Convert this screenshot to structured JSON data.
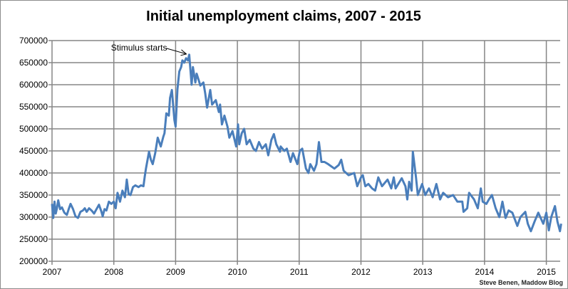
{
  "chart_data": {
    "type": "line",
    "title": "Initial unemployment claims, 2007 - 2015",
    "xlabel": "",
    "ylabel": "",
    "xlim": [
      2007,
      2015.25
    ],
    "ylim": [
      200000,
      700000
    ],
    "x_ticks": [
      "2007",
      "2008",
      "2009",
      "2010",
      "2011",
      "2012",
      "2013",
      "2014",
      "2015"
    ],
    "y_ticks": [
      "200000",
      "250000",
      "300000",
      "350000",
      "400000",
      "450000",
      "500000",
      "550000",
      "600000",
      "650000",
      "700000"
    ],
    "grid": true,
    "legend": "none",
    "line_color": "#4a7ebb",
    "annotation": {
      "text": "Stimulus starts",
      "x": 2009.22,
      "y": 668000
    },
    "credit": "Steve Benen, Maddow Blog",
    "series": [
      {
        "points": [
          [
            2007.0,
            330000
          ],
          [
            2007.02,
            298000
          ],
          [
            2007.04,
            335000
          ],
          [
            2007.06,
            308000
          ],
          [
            2007.08,
            320000
          ],
          [
            2007.1,
            338000
          ],
          [
            2007.13,
            318000
          ],
          [
            2007.16,
            322000
          ],
          [
            2007.2,
            310000
          ],
          [
            2007.24,
            305000
          ],
          [
            2007.27,
            318000
          ],
          [
            2007.3,
            330000
          ],
          [
            2007.34,
            318000
          ],
          [
            2007.38,
            302000
          ],
          [
            2007.42,
            298000
          ],
          [
            2007.46,
            312000
          ],
          [
            2007.5,
            315000
          ],
          [
            2007.53,
            320000
          ],
          [
            2007.56,
            312000
          ],
          [
            2007.6,
            320000
          ],
          [
            2007.64,
            315000
          ],
          [
            2007.68,
            308000
          ],
          [
            2007.72,
            318000
          ],
          [
            2007.76,
            328000
          ],
          [
            2007.8,
            312000
          ],
          [
            2007.82,
            302000
          ],
          [
            2007.85,
            318000
          ],
          [
            2007.88,
            315000
          ],
          [
            2007.92,
            335000
          ],
          [
            2007.96,
            330000
          ],
          [
            2008.0,
            335000
          ],
          [
            2008.03,
            320000
          ],
          [
            2008.06,
            355000
          ],
          [
            2008.1,
            335000
          ],
          [
            2008.14,
            360000
          ],
          [
            2008.18,
            345000
          ],
          [
            2008.21,
            385000
          ],
          [
            2008.24,
            352000
          ],
          [
            2008.27,
            350000
          ],
          [
            2008.31,
            368000
          ],
          [
            2008.35,
            372000
          ],
          [
            2008.4,
            368000
          ],
          [
            2008.44,
            372000
          ],
          [
            2008.48,
            370000
          ],
          [
            2008.5,
            392000
          ],
          [
            2008.52,
            410000
          ],
          [
            2008.57,
            448000
          ],
          [
            2008.6,
            430000
          ],
          [
            2008.63,
            420000
          ],
          [
            2008.67,
            445000
          ],
          [
            2008.71,
            480000
          ],
          [
            2008.76,
            460000
          ],
          [
            2008.8,
            482000
          ],
          [
            2008.82,
            490000
          ],
          [
            2008.85,
            535000
          ],
          [
            2008.89,
            530000
          ],
          [
            2008.91,
            570000
          ],
          [
            2008.94,
            588000
          ],
          [
            2008.98,
            520000
          ],
          [
            2009.0,
            505000
          ],
          [
            2009.03,
            590000
          ],
          [
            2009.06,
            630000
          ],
          [
            2009.09,
            640000
          ],
          [
            2009.11,
            655000
          ],
          [
            2009.14,
            650000
          ],
          [
            2009.17,
            660000
          ],
          [
            2009.2,
            655000
          ],
          [
            2009.22,
            668000
          ],
          [
            2009.26,
            600000
          ],
          [
            2009.28,
            640000
          ],
          [
            2009.32,
            605000
          ],
          [
            2009.34,
            625000
          ],
          [
            2009.37,
            612000
          ],
          [
            2009.4,
            598000
          ],
          [
            2009.45,
            605000
          ],
          [
            2009.48,
            580000
          ],
          [
            2009.51,
            548000
          ],
          [
            2009.56,
            588000
          ],
          [
            2009.59,
            555000
          ],
          [
            2009.65,
            565000
          ],
          [
            2009.7,
            538000
          ],
          [
            2009.72,
            555000
          ],
          [
            2009.75,
            510000
          ],
          [
            2009.79,
            530000
          ],
          [
            2009.84,
            505000
          ],
          [
            2009.87,
            480000
          ],
          [
            2009.92,
            495000
          ],
          [
            2009.98,
            460000
          ],
          [
            2010.01,
            510000
          ],
          [
            2010.03,
            465000
          ],
          [
            2010.07,
            490000
          ],
          [
            2010.11,
            500000
          ],
          [
            2010.15,
            465000
          ],
          [
            2010.2,
            475000
          ],
          [
            2010.26,
            455000
          ],
          [
            2010.3,
            450000
          ],
          [
            2010.35,
            470000
          ],
          [
            2010.4,
            455000
          ],
          [
            2010.46,
            465000
          ],
          [
            2010.5,
            440000
          ],
          [
            2010.55,
            475000
          ],
          [
            2010.59,
            488000
          ],
          [
            2010.63,
            465000
          ],
          [
            2010.69,
            448000
          ],
          [
            2010.7,
            460000
          ],
          [
            2010.76,
            450000
          ],
          [
            2010.8,
            455000
          ],
          [
            2010.86,
            425000
          ],
          [
            2010.9,
            445000
          ],
          [
            2010.97,
            420000
          ],
          [
            2011.01,
            450000
          ],
          [
            2011.05,
            455000
          ],
          [
            2011.11,
            410000
          ],
          [
            2011.15,
            400000
          ],
          [
            2011.18,
            420000
          ],
          [
            2011.24,
            405000
          ],
          [
            2011.28,
            420000
          ],
          [
            2011.32,
            470000
          ],
          [
            2011.36,
            425000
          ],
          [
            2011.41,
            425000
          ],
          [
            2011.47,
            420000
          ],
          [
            2011.57,
            410000
          ],
          [
            2011.64,
            418000
          ],
          [
            2011.68,
            430000
          ],
          [
            2011.72,
            405000
          ],
          [
            2011.8,
            395000
          ],
          [
            2011.89,
            400000
          ],
          [
            2011.94,
            370000
          ],
          [
            2012.0,
            390000
          ],
          [
            2012.03,
            395000
          ],
          [
            2012.07,
            370000
          ],
          [
            2012.12,
            375000
          ],
          [
            2012.18,
            365000
          ],
          [
            2012.23,
            360000
          ],
          [
            2012.28,
            390000
          ],
          [
            2012.34,
            370000
          ],
          [
            2012.43,
            385000
          ],
          [
            2012.49,
            365000
          ],
          [
            2012.53,
            390000
          ],
          [
            2012.56,
            365000
          ],
          [
            2012.66,
            388000
          ],
          [
            2012.72,
            370000
          ],
          [
            2012.75,
            340000
          ],
          [
            2012.78,
            380000
          ],
          [
            2012.82,
            360000
          ],
          [
            2012.84,
            448000
          ],
          [
            2012.89,
            390000
          ],
          [
            2012.92,
            350000
          ],
          [
            2012.99,
            375000
          ],
          [
            2013.04,
            350000
          ],
          [
            2013.1,
            365000
          ],
          [
            2013.16,
            345000
          ],
          [
            2013.22,
            375000
          ],
          [
            2013.28,
            340000
          ],
          [
            2013.33,
            355000
          ],
          [
            2013.41,
            345000
          ],
          [
            2013.49,
            350000
          ],
          [
            2013.56,
            335000
          ],
          [
            2013.64,
            335000
          ],
          [
            2013.66,
            312000
          ],
          [
            2013.72,
            320000
          ],
          [
            2013.75,
            355000
          ],
          [
            2013.83,
            340000
          ],
          [
            2013.89,
            320000
          ],
          [
            2013.94,
            365000
          ],
          [
            2013.97,
            335000
          ],
          [
            2014.03,
            330000
          ],
          [
            2014.07,
            340000
          ],
          [
            2014.12,
            350000
          ],
          [
            2014.18,
            320000
          ],
          [
            2014.24,
            300000
          ],
          [
            2014.29,
            335000
          ],
          [
            2014.34,
            298000
          ],
          [
            2014.39,
            315000
          ],
          [
            2014.45,
            310000
          ],
          [
            2014.53,
            280000
          ],
          [
            2014.58,
            300000
          ],
          [
            2014.66,
            312000
          ],
          [
            2014.7,
            285000
          ],
          [
            2014.75,
            268000
          ],
          [
            2014.81,
            290000
          ],
          [
            2014.87,
            310000
          ],
          [
            2014.95,
            285000
          ],
          [
            2015.0,
            310000
          ],
          [
            2015.04,
            270000
          ],
          [
            2015.08,
            300000
          ],
          [
            2015.14,
            325000
          ],
          [
            2015.18,
            290000
          ],
          [
            2015.22,
            268000
          ],
          [
            2015.24,
            285000
          ]
        ]
      }
    ]
  }
}
